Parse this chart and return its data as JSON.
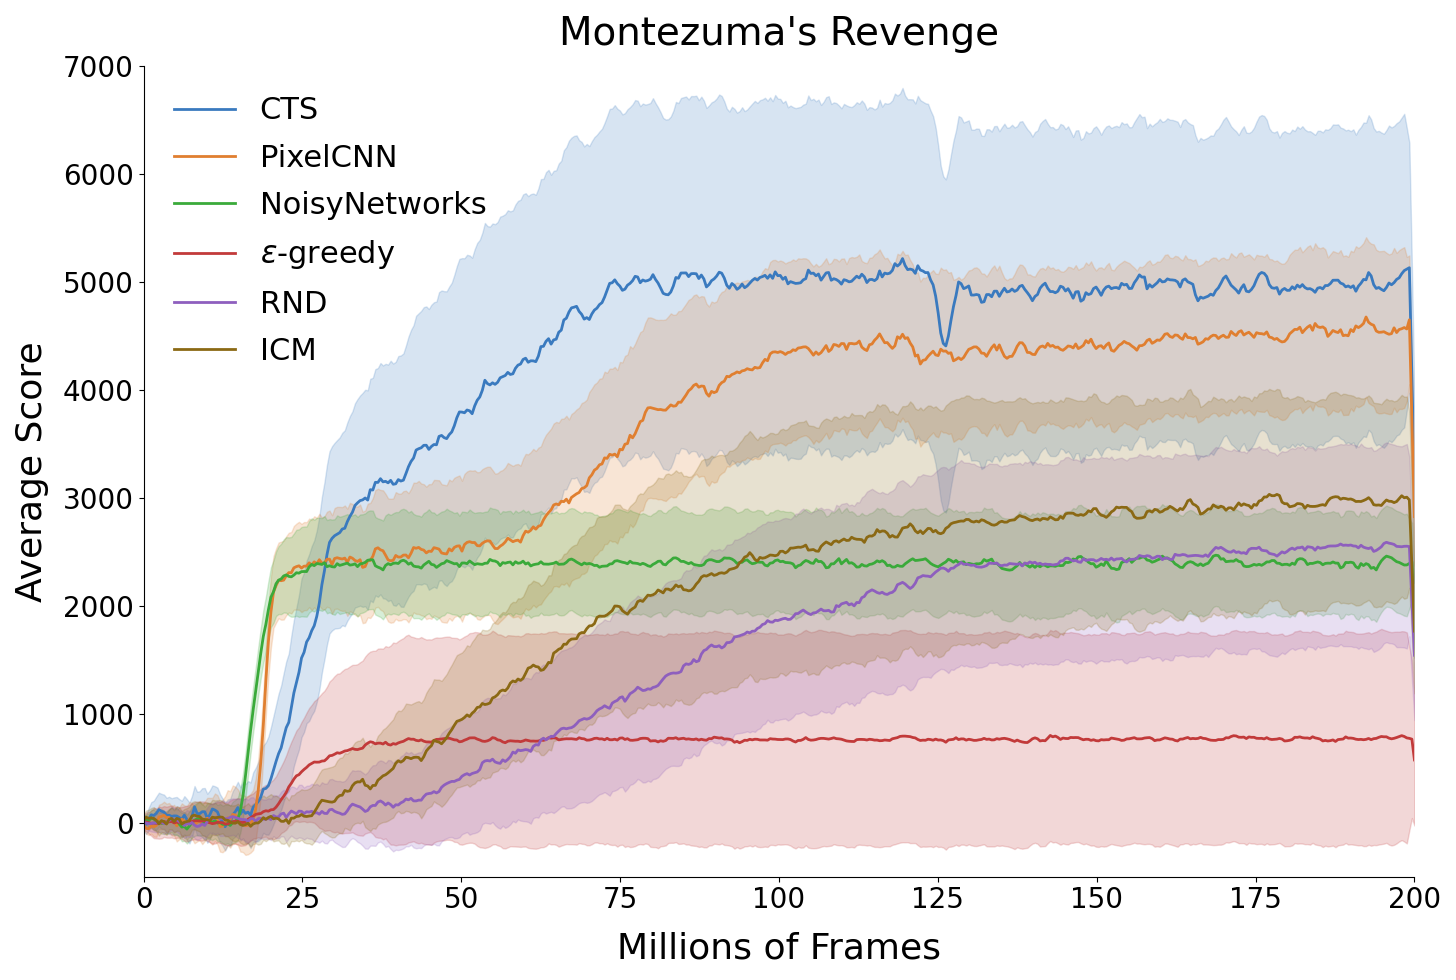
{
  "title": "Montezuma's Revenge",
  "xlabel": "Millions of Frames",
  "ylabel": "Average Score",
  "xlim": [
    0,
    200
  ],
  "ylim": [
    -500,
    7000
  ],
  "yticks": [
    0,
    1000,
    2000,
    3000,
    4000,
    5000,
    6000,
    7000
  ],
  "xticks": [
    0,
    25,
    50,
    75,
    100,
    125,
    150,
    175,
    200
  ],
  "title_fontsize": 28,
  "label_fontsize": 26,
  "tick_fontsize": 20,
  "legend_fontsize": 22,
  "series": [
    {
      "name": "CTS",
      "color": "#3a7abf",
      "line_width": 2.0
    },
    {
      "name": "PixelCNN",
      "color": "#e07f30",
      "line_width": 2.0
    },
    {
      "name": "NoisyNetworks",
      "color": "#3aaa3a",
      "line_width": 2.0
    },
    {
      "name": "$\\epsilon$-greedy",
      "color": "#c23a3a",
      "line_width": 2.0
    },
    {
      "name": "RND",
      "color": "#8e5fbe",
      "line_width": 2.0
    },
    {
      "name": "ICM",
      "color": "#8b6914",
      "line_width": 2.0
    }
  ],
  "fill_alpha": 0.2
}
